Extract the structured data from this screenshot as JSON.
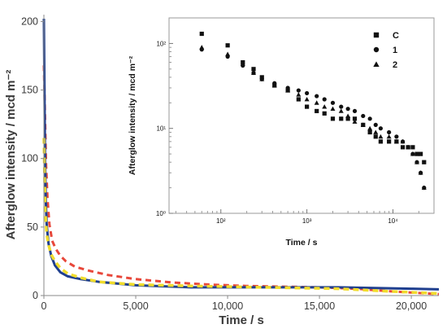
{
  "chart_data": [
    {
      "type": "line",
      "xlabel": "Time / s",
      "ylabel": "Afterglow intensity / mcd m⁻²",
      "xlim": [
        0,
        21500
      ],
      "ylim": [
        0,
        205
      ],
      "xticks": [
        0,
        5000,
        10000,
        15000,
        20000
      ],
      "xtick_labels": [
        "0",
        "5,000",
        "10,000",
        "15,000",
        "20,000"
      ],
      "yticks": [
        0,
        50,
        100,
        150,
        200
      ],
      "ytick_labels": [
        "0",
        "50",
        "100",
        "150",
        "200"
      ],
      "series": [
        {
          "color": "#e8473a",
          "style": "dashed",
          "width": 3,
          "x": [
            0,
            60,
            120,
            200,
            300,
            450,
            650,
            900,
            1200,
            1700,
            2500,
            3500,
            5000,
            7000,
            9000,
            11000,
            13000,
            15000,
            17000,
            19000,
            21500
          ],
          "y": [
            168,
            130,
            95,
            70,
            52,
            40,
            34,
            29,
            25,
            21,
            18,
            15,
            12,
            9.5,
            8,
            7,
            6.5,
            6,
            5,
            3,
            1
          ]
        },
        {
          "color": "#1f3f8f",
          "style": "solid",
          "width": 3,
          "x": [
            0,
            30,
            60,
            100,
            150,
            250,
            400,
            600,
            900,
            1300,
            2000,
            3000,
            5000,
            8000,
            12000,
            16000,
            20000,
            21500
          ],
          "y": [
            202,
            150,
            100,
            70,
            52,
            38,
            29,
            22,
            17,
            14,
            12,
            10,
            7.5,
            6,
            6,
            6,
            5,
            4.5
          ]
        },
        {
          "color": "#f0dc2c",
          "style": "dashed",
          "width": 3.5,
          "x": [
            0,
            40,
            80,
            150,
            250,
            400,
            600,
            900,
            1300,
            2000,
            3000,
            5000,
            8000,
            12000,
            16000,
            19000,
            21500
          ],
          "y": [
            115,
            85,
            60,
            45,
            37,
            30,
            25,
            20,
            16,
            13,
            10,
            8,
            7,
            6,
            5,
            3,
            1.5
          ]
        }
      ]
    },
    {
      "type": "scatter",
      "xlabel": "Time / s",
      "ylabel": "Afterglow intensity / mcd m⁻²",
      "x_scale": "log",
      "y_scale": "log",
      "xlim": [
        25,
        30000
      ],
      "ylim": [
        1,
        200
      ],
      "xticks": [
        100,
        1000,
        10000
      ],
      "xtick_labels": [
        "10²",
        "10³",
        "10⁴"
      ],
      "yticks": [
        1,
        10,
        100
      ],
      "ytick_labels": [
        "10⁰",
        "10¹",
        "10²"
      ],
      "legend_position": "top-right",
      "series": [
        {
          "name": "C",
          "marker": "square",
          "x": [
            60,
            120,
            180,
            240,
            300,
            420,
            600,
            800,
            1000,
            1300,
            1600,
            2000,
            2500,
            3000,
            3600,
            4500,
            5400,
            6300,
            7200,
            9000,
            11000,
            13000,
            15000,
            17000,
            19000,
            21000,
            23000
          ],
          "y": [
            130,
            95,
            60,
            50,
            40,
            32,
            28,
            22,
            18,
            16,
            15,
            13,
            13,
            13,
            13,
            11,
            9,
            8,
            7,
            7,
            7,
            6,
            6,
            6,
            5,
            5,
            4
          ]
        },
        {
          "name": "1",
          "marker": "circle",
          "x": [
            60,
            120,
            180,
            240,
            300,
            420,
            600,
            800,
            1000,
            1300,
            1600,
            2000,
            2500,
            3000,
            3600,
            4500,
            5400,
            6300,
            7200,
            9000,
            11000,
            13000,
            15000,
            17000,
            19000,
            21000,
            23000
          ],
          "y": [
            85,
            70,
            55,
            45,
            38,
            34,
            30,
            28,
            26,
            24,
            22,
            20,
            18,
            17,
            16,
            14,
            13,
            11,
            10,
            9,
            8,
            7,
            6,
            5,
            4,
            3,
            2
          ]
        },
        {
          "name": "2",
          "marker": "triangle",
          "x": [
            60,
            120,
            180,
            240,
            300,
            420,
            600,
            800,
            1000,
            1300,
            1600,
            2000,
            2500,
            3000,
            3600,
            4500,
            5400,
            6300,
            7200,
            9000,
            11000,
            13000,
            15000,
            17000,
            19000,
            21000,
            23000
          ],
          "y": [
            90,
            75,
            58,
            45,
            38,
            32,
            28,
            25,
            22,
            20,
            18,
            17,
            16,
            14,
            12,
            11,
            10,
            9,
            8,
            8,
            7,
            7,
            6,
            5,
            4,
            3,
            2
          ]
        }
      ]
    }
  ]
}
